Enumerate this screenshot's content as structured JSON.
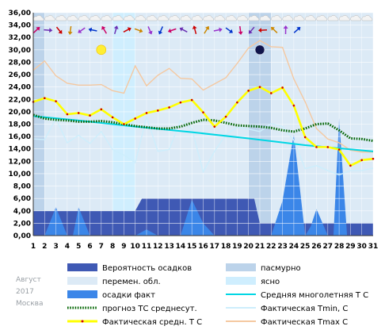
{
  "caption": {
    "month": "Август",
    "year": "2017",
    "city": "Москва"
  },
  "colors": {
    "overcast": "#bcd3ea",
    "partly_cloudy": "#dceaf6",
    "clear": "#cfeefe",
    "precip_probability": "#3f59b4",
    "precip_fact": "#3b86e8",
    "long_term_mean": "#00d6e4",
    "forecast_mean": "#006400",
    "actual_mean": "#ffff00",
    "actual_tmin": "#cdeefc",
    "actual_tmax": "#f5c8a0"
  },
  "legend": [
    {
      "key": "precip_probability",
      "label": "Вероятность осадков",
      "kind": "box"
    },
    {
      "key": "overcast",
      "label": "пасмурно",
      "kind": "box"
    },
    {
      "key": "partly_cloudy",
      "label": "перемен. обл.",
      "kind": "box"
    },
    {
      "key": "clear",
      "label": "ясно",
      "kind": "box"
    },
    {
      "key": "precip_fact",
      "label": "осадки факт",
      "kind": "box"
    },
    {
      "key": "long_term_mean",
      "label": "Средняя многолетняя Т С",
      "kind": "line"
    },
    {
      "key": "forecast_mean",
      "label": "прогноз ТС среднесут.",
      "kind": "dots"
    },
    {
      "key": "actual_tmin",
      "label": "Фактическая Tmin, C",
      "kind": "line"
    },
    {
      "key": "actual_mean",
      "label": "Фактическая средн. Т С",
      "kind": "thick"
    },
    {
      "key": "actual_tmax",
      "label": "Фактическая Tmax C",
      "kind": "line"
    }
  ],
  "chart_data": {
    "type": "line",
    "xlim": [
      1,
      31
    ],
    "ylim": [
      0,
      36
    ],
    "y_ticks": [
      "0,00",
      "2,00",
      "4,00",
      "6,00",
      "8,00",
      "10,00",
      "12,00",
      "14,00",
      "16,00",
      "18,00",
      "20,00",
      "22,00",
      "24,00",
      "26,00",
      "28,00",
      "30,00",
      "32,00",
      "34,00",
      "36,00"
    ],
    "x_ticks": [
      "1",
      "2",
      "3",
      "4",
      "5",
      "6",
      "7",
      "8",
      "9",
      "10",
      "11",
      "12",
      "13",
      "14",
      "15",
      "16",
      "17",
      "18",
      "19",
      "20",
      "21",
      "22",
      "23",
      "24",
      "25",
      "26",
      "27",
      "28",
      "29",
      "30",
      "31"
    ],
    "grid": true,
    "precip_probability": [
      [
        1,
        4
      ],
      [
        10,
        4
      ],
      [
        10.6,
        6
      ],
      [
        20.5,
        6
      ],
      [
        21,
        2
      ],
      [
        31,
        2
      ]
    ],
    "precip_fact": [
      [
        1,
        0
      ],
      [
        2,
        0
      ],
      [
        3,
        4.6
      ],
      [
        4,
        0
      ],
      [
        4.5,
        0
      ],
      [
        5,
        4.6
      ],
      [
        6,
        0
      ],
      [
        8,
        0
      ],
      [
        10,
        0
      ],
      [
        11,
        1
      ],
      [
        12,
        0
      ],
      [
        14,
        0
      ],
      [
        15,
        5.8
      ],
      [
        16,
        2
      ],
      [
        17,
        0
      ],
      [
        22,
        0
      ],
      [
        23,
        5.6
      ],
      [
        24,
        16.4
      ],
      [
        25,
        0
      ],
      [
        25.5,
        1.5
      ],
      [
        26,
        4.3
      ],
      [
        27,
        0
      ],
      [
        27.5,
        0
      ],
      [
        28,
        19
      ],
      [
        28.7,
        0
      ],
      [
        31,
        0
      ]
    ],
    "long_term_mean": [
      [
        1,
        19.3
      ],
      [
        5,
        18.6
      ],
      [
        10,
        17.6
      ],
      [
        15,
        16.7
      ],
      [
        20,
        15.7
      ],
      [
        25,
        14.6
      ],
      [
        31,
        13.6
      ]
    ],
    "forecast_mean": [
      [
        1,
        19.5
      ],
      [
        2,
        18.9
      ],
      [
        3,
        18.7
      ],
      [
        4,
        18.6
      ],
      [
        5,
        18.4
      ],
      [
        6,
        18.4
      ],
      [
        7,
        18.5
      ],
      [
        8,
        18.3
      ],
      [
        9,
        18.0
      ],
      [
        10,
        17.7
      ],
      [
        11,
        17.5
      ],
      [
        12,
        17.3
      ],
      [
        13,
        17.3
      ],
      [
        14,
        17.6
      ],
      [
        15,
        18.2
      ],
      [
        16,
        18.7
      ],
      [
        17,
        18.6
      ],
      [
        18,
        18.2
      ],
      [
        19,
        17.8
      ],
      [
        20,
        17.7
      ],
      [
        21,
        17.6
      ],
      [
        22,
        17.4
      ],
      [
        23,
        17.0
      ],
      [
        24,
        16.8
      ],
      [
        25,
        17.3
      ],
      [
        26,
        18.0
      ],
      [
        27,
        18.1
      ],
      [
        28,
        17.0
      ],
      [
        29,
        15.7
      ],
      [
        30,
        15.6
      ],
      [
        31,
        15.3
      ]
    ],
    "actual_mean": [
      [
        1,
        21.6
      ],
      [
        2,
        22.2
      ],
      [
        3,
        21.7
      ],
      [
        4,
        19.6
      ],
      [
        5,
        19.8
      ],
      [
        6,
        19.4
      ],
      [
        7,
        20.4
      ],
      [
        8,
        19.1
      ],
      [
        9,
        18.0
      ],
      [
        10,
        18.9
      ],
      [
        11,
        19.8
      ],
      [
        12,
        20.2
      ],
      [
        13,
        20.7
      ],
      [
        14,
        21.5
      ],
      [
        15,
        21.9
      ],
      [
        16,
        19.9
      ],
      [
        17,
        17.6
      ],
      [
        18,
        19.2
      ],
      [
        19,
        21.5
      ],
      [
        20,
        23.4
      ],
      [
        21,
        24.0
      ],
      [
        22,
        23.0
      ],
      [
        23,
        23.9
      ],
      [
        24,
        21.0
      ],
      [
        25,
        15.9
      ],
      [
        26,
        14.3
      ],
      [
        27,
        14.3
      ],
      [
        28,
        13.9
      ],
      [
        29,
        11.3
      ],
      [
        30,
        12.2
      ],
      [
        31,
        12.4
      ]
    ],
    "actual_tmin": [
      [
        1,
        15.6
      ],
      [
        2,
        15.5
      ],
      [
        3,
        18.9
      ],
      [
        4,
        15.0
      ],
      [
        5,
        16.2
      ],
      [
        6,
        14.9
      ],
      [
        7,
        16.8
      ],
      [
        8,
        13.9
      ],
      [
        9,
        13.0
      ],
      [
        10,
        11.8
      ],
      [
        11,
        19.1
      ],
      [
        12,
        13.6
      ],
      [
        13,
        13.9
      ],
      [
        14,
        18.6
      ],
      [
        15,
        17.2
      ],
      [
        16,
        10.3
      ],
      [
        17,
        13.6
      ],
      [
        18,
        16.3
      ],
      [
        19,
        17.5
      ],
      [
        20,
        17.2
      ],
      [
        21,
        16.8
      ],
      [
        22,
        18.1
      ],
      [
        23,
        17.6
      ],
      [
        24,
        15.4
      ],
      [
        25,
        10.8
      ],
      [
        26,
        11.3
      ],
      [
        27,
        10.5
      ],
      [
        28,
        9.8
      ],
      [
        29,
        10.5
      ],
      [
        30,
        10.5
      ],
      [
        31,
        10.9
      ]
    ],
    "actual_tmax": [
      [
        1,
        26.7
      ],
      [
        2,
        28.2
      ],
      [
        3,
        25.8
      ],
      [
        4,
        24.6
      ],
      [
        5,
        24.3
      ],
      [
        6,
        24.3
      ],
      [
        7,
        24.4
      ],
      [
        8,
        23.4
      ],
      [
        9,
        23.0
      ],
      [
        10,
        27.4
      ],
      [
        11,
        24.2
      ],
      [
        12,
        25.9
      ],
      [
        13,
        27.0
      ],
      [
        14,
        25.4
      ],
      [
        15,
        25.3
      ],
      [
        16,
        23.5
      ],
      [
        17,
        24.5
      ],
      [
        18,
        25.5
      ],
      [
        19,
        27.8
      ],
      [
        20,
        30.3
      ],
      [
        21,
        31.5
      ],
      [
        22,
        30.5
      ],
      [
        23,
        30.4
      ],
      [
        24,
        25.3
      ],
      [
        25,
        21.6
      ],
      [
        26,
        17.3
      ],
      [
        27,
        15.6
      ],
      [
        28,
        15.0
      ],
      [
        29,
        13.8
      ],
      [
        30,
        13.5
      ],
      [
        31,
        13.5
      ]
    ],
    "sky_condition": [
      {
        "from": 1,
        "to": 2,
        "state": "overcast"
      },
      {
        "from": 2,
        "to": 8,
        "state": "partly_cloudy"
      },
      {
        "from": 8,
        "to": 10,
        "state": "clear"
      },
      {
        "from": 10,
        "to": 20,
        "state": "partly_cloudy"
      },
      {
        "from": 20,
        "to": 22,
        "state": "overcast"
      },
      {
        "from": 22,
        "to": 31,
        "state": "partly_cloudy"
      }
    ],
    "sun_day": 7,
    "moon_day": 21,
    "sun_moon_y": 30
  }
}
